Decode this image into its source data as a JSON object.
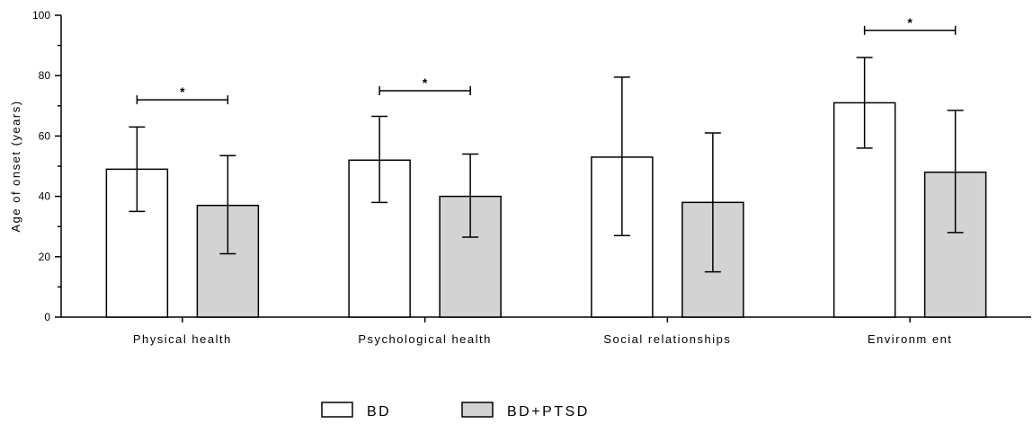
{
  "chart_data": {
    "type": "bar",
    "ylabel": "Age of onset (years)",
    "ylim": [
      0,
      100
    ],
    "yticks": [
      0,
      20,
      40,
      60,
      80,
      100
    ],
    "categories": [
      "Physical health",
      "Psychological health",
      "Social relationships",
      "Environm ent"
    ],
    "series": [
      {
        "name": "BD",
        "values": [
          49,
          52,
          53,
          71
        ],
        "err_low": [
          35,
          38,
          27,
          56
        ],
        "err_high": [
          63,
          66.5,
          79.5,
          86
        ],
        "color": "#ffffff"
      },
      {
        "name": "BD+PTSD",
        "values": [
          37,
          40,
          38,
          48
        ],
        "err_low": [
          21,
          26.5,
          15,
          28
        ],
        "err_high": [
          53.5,
          54,
          61,
          68.5
        ],
        "color": "#d3d3d3"
      }
    ],
    "significance": [
      {
        "category_index": 0,
        "level": 72,
        "label": "*"
      },
      {
        "category_index": 1,
        "level": 75,
        "label": "*"
      },
      {
        "category_index": 3,
        "level": 95,
        "label": "*"
      }
    ],
    "grid": false,
    "legend_position": "bottom"
  }
}
